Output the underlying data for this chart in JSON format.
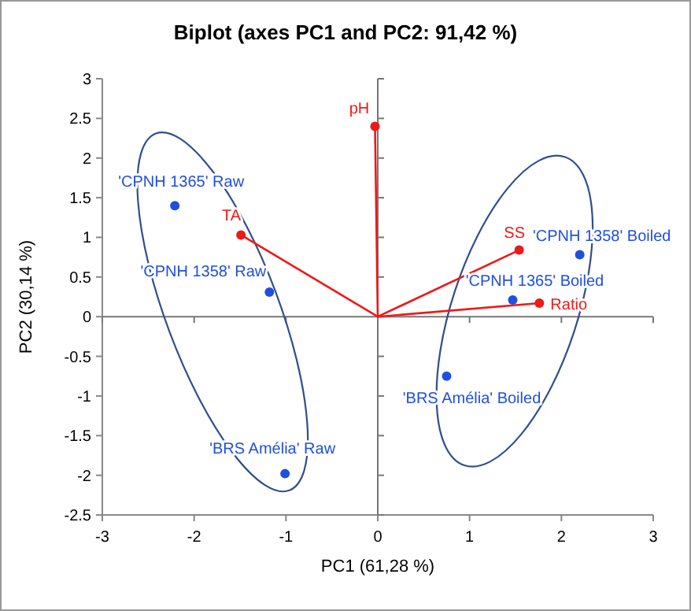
{
  "chart_data": {
    "type": "scatter",
    "title": "Biplot (axes PC1 and PC2: 91,42 %)",
    "xlabel": "PC1 (61,28 %)",
    "ylabel": "PC2 (30,14 %)",
    "xlim": [
      -3,
      3
    ],
    "xticks": [
      -3,
      -2,
      -1,
      0,
      1,
      2,
      3
    ],
    "ylim": [
      -2.5,
      3
    ],
    "yticks": [
      -2.5,
      -2,
      -1.5,
      -1,
      -0.5,
      0,
      0.5,
      1,
      1.5,
      2,
      2.5,
      3
    ],
    "marker": "circle",
    "series": [
      {
        "name": "'CPNH 1365' Raw",
        "color": "#1f4fe0",
        "x": [
          -2.21
        ],
        "values": [
          1.4
        ]
      },
      {
        "name": "'CPNH 1358' Raw",
        "color": "#1f4fe0",
        "x": [
          -1.18
        ],
        "values": [
          0.31
        ]
      },
      {
        "name": "'BRS Amélia' Raw",
        "color": "#1f4fe0",
        "x": [
          -1.01
        ],
        "values": [
          -1.98
        ]
      },
      {
        "name": "'CPNH 1358' Boiled",
        "color": "#1f4fe0",
        "x": [
          2.2
        ],
        "values": [
          0.78
        ]
      },
      {
        "name": "'CPNH 1365' Boiled",
        "color": "#1f4fe0",
        "x": [
          1.47
        ],
        "values": [
          0.21
        ]
      },
      {
        "name": "'BRS Amélia' Boiled",
        "color": "#1f4fe0",
        "x": [
          0.75
        ],
        "values": [
          -0.75
        ]
      },
      {
        "name": "TA",
        "type": "line",
        "color": "#f01818",
        "x": [
          0,
          -1.49
        ],
        "values": [
          0,
          1.03
        ]
      },
      {
        "name": "pH",
        "type": "line",
        "color": "#f01818",
        "x": [
          0,
          -0.03
        ],
        "values": [
          0,
          2.4
        ]
      },
      {
        "name": "SS",
        "type": "line",
        "color": "#f01818",
        "x": [
          0,
          1.54
        ],
        "values": [
          0,
          0.84
        ]
      },
      {
        "name": "Ratio",
        "type": "line",
        "color": "#f01818",
        "x": [
          0,
          1.76
        ],
        "values": [
          0,
          0.17
        ]
      }
    ]
  }
}
